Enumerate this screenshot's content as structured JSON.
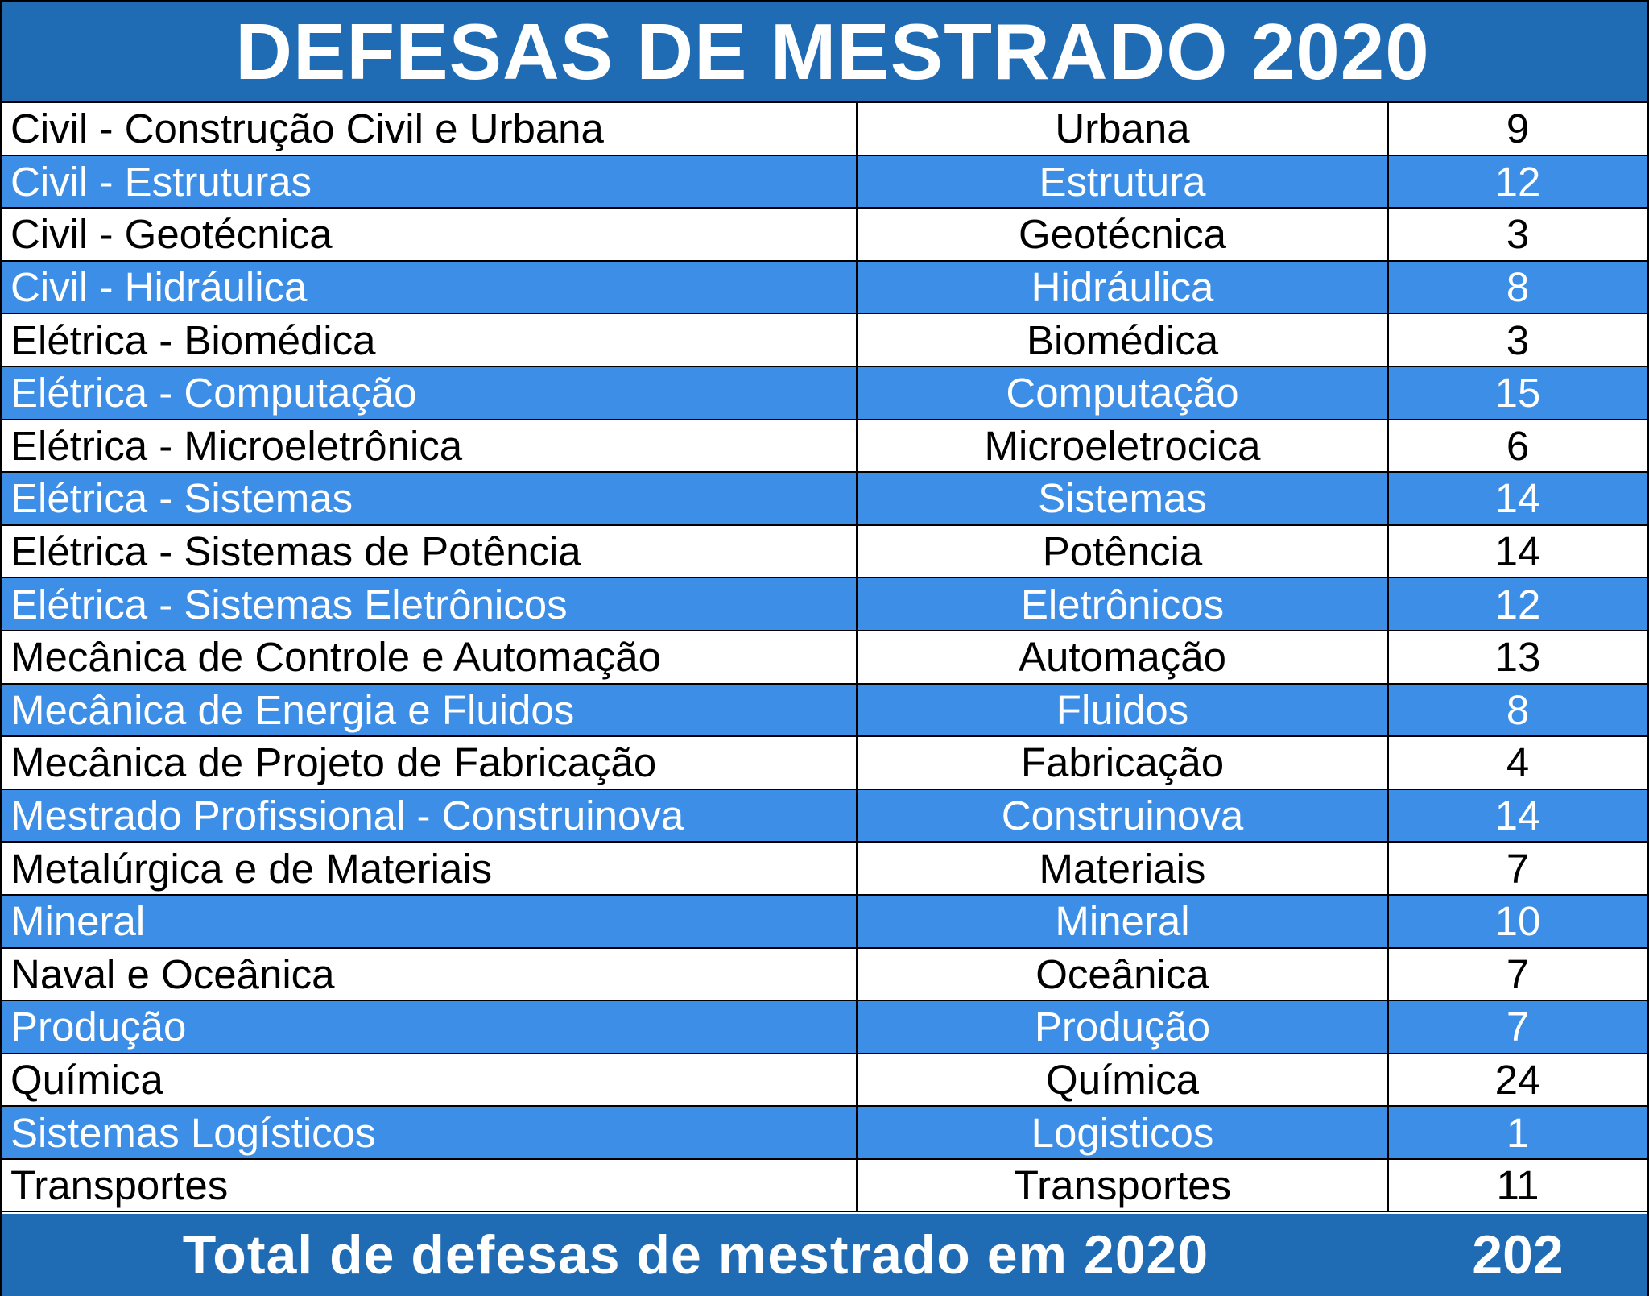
{
  "title": "DEFESAS DE MESTRADO 2020",
  "colors": {
    "header": "#1f6cb5",
    "alt_row": "#3d8ee6",
    "plain_row": "#ffffff"
  },
  "chart_data": {
    "type": "table",
    "title": "DEFESAS DE MESTRADO 2020",
    "rows": [
      {
        "program": "Civil - Construção Civil e Urbana",
        "short": "Urbana",
        "count": 9
      },
      {
        "program": "Civil - Estruturas",
        "short": "Estrutura",
        "count": 12
      },
      {
        "program": "Civil - Geotécnica",
        "short": "Geotécnica",
        "count": 3
      },
      {
        "program": "Civil - Hidráulica",
        "short": "Hidráulica",
        "count": 8
      },
      {
        "program": "Elétrica - Biomédica",
        "short": "Biomédica",
        "count": 3
      },
      {
        "program": "Elétrica - Computação",
        "short": "Computação",
        "count": 15
      },
      {
        "program": "Elétrica - Microeletrônica",
        "short": "Microeletrocica",
        "count": 6
      },
      {
        "program": "Elétrica - Sistemas",
        "short": "Sistemas",
        "count": 14
      },
      {
        "program": "Elétrica - Sistemas de Potência",
        "short": "Potência",
        "count": 14
      },
      {
        "program": "Elétrica - Sistemas Eletrônicos",
        "short": "Eletrônicos",
        "count": 12
      },
      {
        "program": "Mecânica de Controle e Automação",
        "short": "Automação",
        "count": 13
      },
      {
        "program": "Mecânica de Energia e Fluidos",
        "short": "Fluidos",
        "count": 8
      },
      {
        "program": "Mecânica de Projeto de Fabricação",
        "short": "Fabricação",
        "count": 4
      },
      {
        "program": "Mestrado Profissional - Construinova",
        "short": "Construinova",
        "count": 14
      },
      {
        "program": "Metalúrgica e de Materiais",
        "short": "Materiais",
        "count": 7
      },
      {
        "program": "Mineral",
        "short": "Mineral",
        "count": 10
      },
      {
        "program": "Naval e Oceânica",
        "short": "Oceânica",
        "count": 7
      },
      {
        "program": "Produção",
        "short": "Produção",
        "count": 7
      },
      {
        "program": "Química",
        "short": "Química",
        "count": 24
      },
      {
        "program": "Sistemas Logísticos",
        "short": "Logisticos",
        "count": 1
      },
      {
        "program": "Transportes",
        "short": "Transportes",
        "count": 11
      }
    ],
    "total_label": "Total de defesas de mestrado em 2020",
    "total_value": 202
  }
}
